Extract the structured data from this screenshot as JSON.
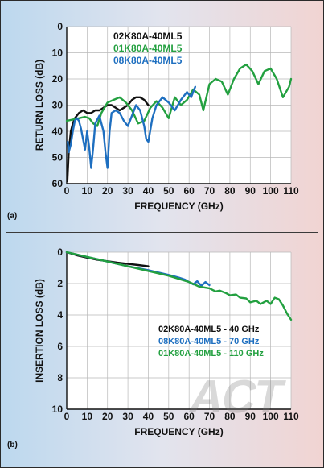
{
  "logo_text": "ACT",
  "chart_data": [
    {
      "type": "line",
      "panel_label": "(a)",
      "xlabel": "FREQUENCY (GHz)",
      "ylabel": "RETURN LOSS (dB)",
      "xlim": [
        0,
        110
      ],
      "ylim": [
        60,
        0
      ],
      "x_ticks": [
        0,
        10,
        20,
        30,
        40,
        50,
        60,
        70,
        80,
        90,
        100,
        110
      ],
      "y_ticks": [
        0,
        10,
        20,
        30,
        40,
        50,
        60
      ],
      "grid": true,
      "legend_position": "top-center",
      "series": [
        {
          "name": "02K80A-40ML5",
          "color": "#111111",
          "x": [
            0.3,
            1,
            2,
            3,
            4,
            5,
            6,
            8,
            10,
            12,
            14,
            16,
            18,
            20,
            22,
            24,
            26,
            28,
            30,
            32,
            34,
            36,
            38,
            40
          ],
          "y": [
            59,
            48,
            40,
            37,
            35,
            34,
            33,
            32,
            33,
            33,
            32,
            32,
            31,
            30,
            30,
            31,
            32,
            31,
            30,
            28,
            27,
            27,
            28,
            30
          ]
        },
        {
          "name": "01K80A-40ML5",
          "color": "#23a040",
          "x": [
            0,
            3,
            6,
            9,
            11,
            13,
            15,
            17,
            20,
            23,
            26,
            29,
            32,
            35,
            38,
            41,
            44,
            47,
            50,
            53,
            56,
            59,
            62,
            65,
            67,
            70,
            73,
            76,
            79,
            82,
            85,
            88,
            91,
            94,
            97,
            100,
            103,
            106,
            109,
            110
          ],
          "y": [
            36,
            35.5,
            35,
            34.5,
            35,
            37,
            38,
            33,
            29,
            28,
            27,
            29,
            32,
            37,
            36,
            31,
            28.5,
            31,
            35,
            27,
            30,
            28,
            24,
            26,
            32,
            22,
            20,
            21,
            26,
            20,
            16,
            14.5,
            17,
            22,
            17,
            16,
            20,
            27,
            23,
            20
          ]
        },
        {
          "name": "08K80A-40ML5",
          "color": "#1e6fc0",
          "x": [
            0.5,
            1,
            2,
            3,
            4,
            5,
            6,
            7,
            8,
            9,
            10,
            11,
            12,
            13,
            14,
            16,
            18,
            19,
            20,
            21,
            22,
            24,
            26,
            28,
            30,
            32,
            34,
            36,
            38,
            39,
            40,
            42,
            44,
            47,
            50,
            53,
            56,
            59,
            61,
            63
          ],
          "y": [
            44,
            48,
            45,
            40,
            36,
            35,
            36,
            39,
            43,
            47,
            40,
            46,
            54,
            46,
            37,
            34,
            40,
            48,
            54,
            40,
            33,
            32,
            33,
            36,
            38,
            34,
            30,
            32,
            38,
            43,
            44,
            35,
            30,
            27,
            29,
            32,
            28,
            25,
            27,
            23
          ]
        }
      ]
    },
    {
      "type": "line",
      "panel_label": "(b)",
      "xlabel": "FREQUENCY (GHz)",
      "ylabel": "INSERTION LOSS (dB)",
      "xlim": [
        0,
        110
      ],
      "ylim": [
        10,
        0
      ],
      "x_ticks": [
        0,
        10,
        20,
        30,
        40,
        50,
        60,
        70,
        80,
        90,
        100,
        110
      ],
      "y_ticks": [
        0,
        2,
        4,
        6,
        8,
        10
      ],
      "grid": true,
      "legend_position": "bottom-right",
      "series": [
        {
          "name": "02K80A-40ML5 - 40 GHz",
          "color": "#111111",
          "x": [
            0,
            5,
            10,
            15,
            20,
            25,
            30,
            35,
            40
          ],
          "y": [
            0.0,
            0.2,
            0.35,
            0.48,
            0.58,
            0.67,
            0.75,
            0.82,
            0.9
          ]
        },
        {
          "name": "08K80A-40ML5 - 70 GHz",
          "color": "#1e6fc0",
          "x": [
            0,
            10,
            20,
            30,
            40,
            50,
            55,
            58,
            60,
            62,
            64,
            66,
            68,
            70
          ],
          "y": [
            0.0,
            0.3,
            0.6,
            0.9,
            1.15,
            1.45,
            1.62,
            1.75,
            1.9,
            2.05,
            1.85,
            2.15,
            1.9,
            2.1
          ]
        },
        {
          "name": "01K80A-40ML5 - 110 GHz",
          "color": "#23a040",
          "x": [
            0,
            10,
            20,
            30,
            40,
            50,
            60,
            65,
            70,
            73,
            75,
            78,
            80,
            83,
            85,
            88,
            90,
            93,
            95,
            98,
            100,
            102,
            104,
            106,
            108,
            110
          ],
          "y": [
            0.0,
            0.3,
            0.6,
            0.9,
            1.2,
            1.5,
            1.9,
            2.2,
            2.3,
            2.5,
            2.45,
            2.6,
            2.75,
            2.7,
            2.9,
            2.95,
            3.2,
            3.1,
            3.3,
            3.1,
            3.3,
            2.9,
            3.0,
            3.4,
            3.9,
            4.3
          ]
        }
      ]
    }
  ]
}
